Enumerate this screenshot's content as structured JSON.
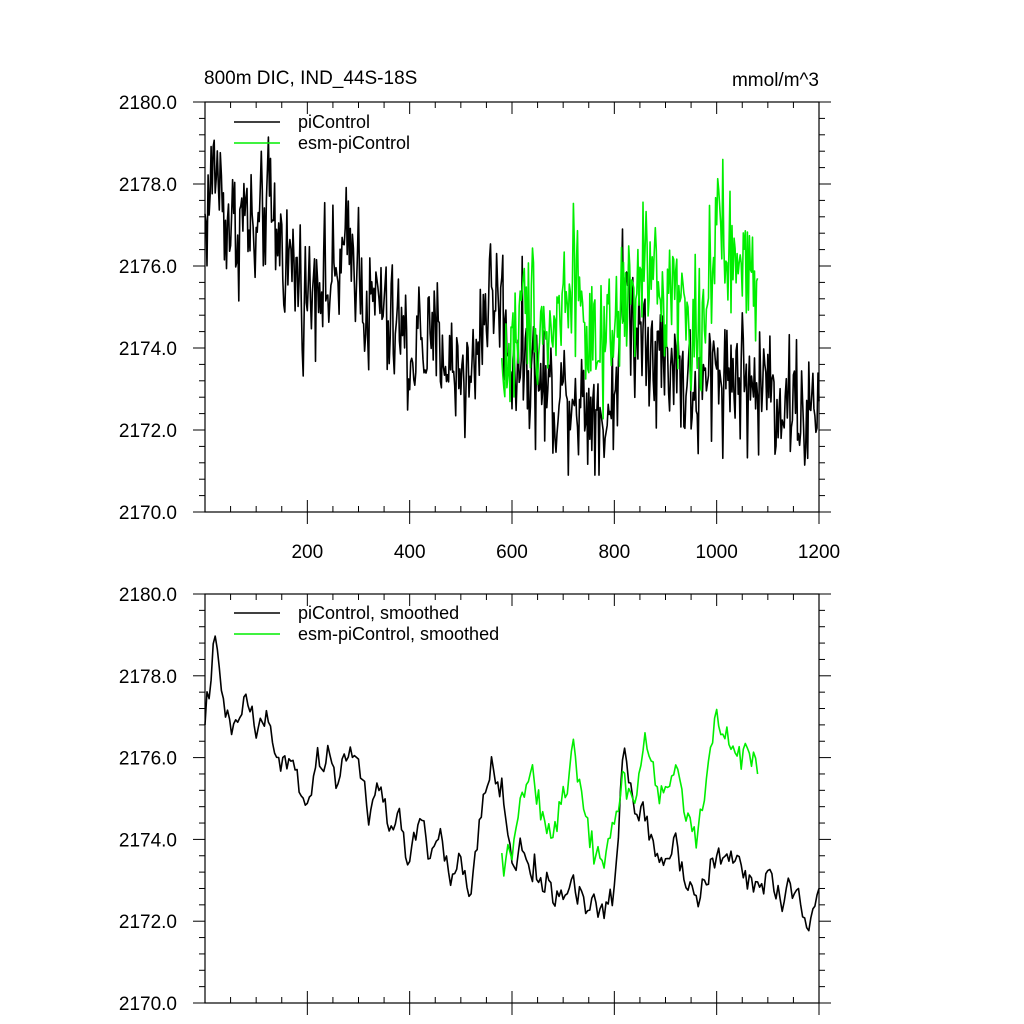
{
  "page": {
    "title": "800m DIC, IND_44S-18S",
    "units": "mmol/m^3"
  },
  "colors": {
    "control": "#000000",
    "esm": "#00ee00"
  },
  "chart_data": [
    {
      "type": "line",
      "title": "800m DIC, IND_44S-18S",
      "ylabel": "mmol/m^3",
      "xlabel": "",
      "xlim": [
        0,
        1200
      ],
      "ylim": [
        2170,
        2180
      ],
      "x_ticks": [
        200,
        400,
        600,
        800,
        1000,
        1200
      ],
      "x_tick_labels": [
        "200",
        "400",
        "600",
        "800",
        "1000",
        "1200"
      ],
      "y_ticks": [
        2170,
        2172,
        2174,
        2176,
        2178,
        2180
      ],
      "y_tick_labels": [
        "2170.0",
        "2172.0",
        "2174.0",
        "2176.0",
        "2178.0",
        "2180.0"
      ],
      "legend": [
        "piControl",
        "esm-piControl"
      ],
      "series": [
        {
          "name": "piControl",
          "color": "#000000",
          "x": [
            0,
            20,
            40,
            60,
            80,
            100,
            120,
            140,
            160,
            180,
            200,
            220,
            240,
            260,
            280,
            300,
            320,
            340,
            360,
            380,
            400,
            420,
            440,
            460,
            480,
            500,
            520,
            540,
            560,
            580,
            600,
            620,
            640,
            660,
            680,
            700,
            720,
            740,
            760,
            780,
            800,
            820,
            840,
            860,
            880,
            900,
            920,
            940,
            960,
            980,
            1000,
            1020,
            1040,
            1060,
            1080,
            1100,
            1120,
            1140,
            1160,
            1180,
            1200
          ],
          "values": [
            2177.0,
            2178.6,
            2177.2,
            2176.9,
            2177.3,
            2176.4,
            2177.6,
            2176.8,
            2176.2,
            2175.8,
            2175.2,
            2176.0,
            2175.4,
            2175.8,
            2176.4,
            2176.2,
            2174.6,
            2175.4,
            2174.3,
            2174.6,
            2173.6,
            2174.4,
            2173.8,
            2174.3,
            2173.4,
            2173.6,
            2173.1,
            2174.7,
            2175.4,
            2175.1,
            2173.6,
            2173.9,
            2173.4,
            2173.1,
            2172.8,
            2172.9,
            2173.0,
            2172.6,
            2172.6,
            2172.1,
            2172.9,
            2175.7,
            2174.4,
            2174.6,
            2173.9,
            2173.6,
            2173.8,
            2173.1,
            2172.7,
            2173.1,
            2173.6,
            2173.3,
            2173.5,
            2173.1,
            2172.9,
            2173.3,
            2172.7,
            2172.8,
            2172.6,
            2172.2,
            2172.7
          ]
        },
        {
          "name": "esm-piControl",
          "color": "#00ee00",
          "x": [
            580,
            600,
            620,
            640,
            660,
            680,
            700,
            720,
            740,
            760,
            780,
            800,
            820,
            840,
            860,
            880,
            900,
            920,
            940,
            960,
            980,
            1000,
            1020,
            1040,
            1060,
            1080
          ],
          "values": [
            2173.4,
            2173.9,
            2174.9,
            2175.1,
            2174.6,
            2174.3,
            2175.2,
            2176.1,
            2174.9,
            2173.8,
            2173.6,
            2174.4,
            2175.3,
            2174.9,
            2176.3,
            2175.5,
            2175.2,
            2175.8,
            2174.6,
            2174.3,
            2175.3,
            2176.9,
            2176.2,
            2176.0,
            2175.9,
            2175.7
          ]
        }
      ]
    },
    {
      "type": "line",
      "title": "",
      "ylabel": "",
      "xlabel": "",
      "xlim": [
        0,
        1200
      ],
      "ylim": [
        2170,
        2180
      ],
      "x_ticks": [
        200,
        400,
        600,
        800,
        1000,
        1200
      ],
      "y_ticks": [
        2170,
        2172,
        2174,
        2176,
        2178,
        2180
      ],
      "y_tick_labels": [
        "2170.0",
        "2172.0",
        "2174.0",
        "2176.0",
        "2178.0",
        "2180.0"
      ],
      "legend": [
        "piControl, smoothed",
        "esm-piControl, smoothed"
      ],
      "series": [
        {
          "name": "piControl, smoothed",
          "color": "#000000",
          "x": [
            0,
            20,
            40,
            60,
            80,
            100,
            120,
            140,
            160,
            180,
            200,
            220,
            240,
            260,
            280,
            300,
            320,
            340,
            360,
            380,
            400,
            420,
            440,
            460,
            480,
            500,
            520,
            540,
            560,
            580,
            600,
            620,
            640,
            660,
            680,
            700,
            720,
            740,
            760,
            780,
            800,
            820,
            840,
            860,
            880,
            900,
            920,
            940,
            960,
            980,
            1000,
            1020,
            1040,
            1060,
            1080,
            1100,
            1120,
            1140,
            1160,
            1180,
            1200
          ],
          "values": [
            2177.0,
            2178.8,
            2177.0,
            2176.6,
            2177.6,
            2176.6,
            2177.0,
            2176.0,
            2175.8,
            2175.6,
            2174.8,
            2175.8,
            2176.0,
            2175.4,
            2176.3,
            2176.0,
            2174.4,
            2175.4,
            2174.2,
            2174.6,
            2173.4,
            2174.6,
            2173.6,
            2174.2,
            2173.0,
            2173.4,
            2172.6,
            2174.6,
            2175.8,
            2175.2,
            2173.4,
            2173.8,
            2173.2,
            2173.0,
            2172.6,
            2172.7,
            2173.0,
            2172.4,
            2172.5,
            2172.1,
            2172.8,
            2176.3,
            2174.6,
            2174.8,
            2173.6,
            2173.6,
            2173.9,
            2173.1,
            2172.6,
            2173.0,
            2173.6,
            2173.4,
            2173.6,
            2173.0,
            2172.8,
            2173.2,
            2172.6,
            2172.7,
            2172.6,
            2172.0,
            2172.8
          ]
        },
        {
          "name": "esm-piControl, smoothed",
          "color": "#00ee00",
          "x": [
            580,
            600,
            620,
            640,
            660,
            680,
            700,
            720,
            740,
            760,
            780,
            800,
            820,
            840,
            860,
            880,
            900,
            920,
            940,
            960,
            980,
            1000,
            1020,
            1040,
            1060,
            1080
          ],
          "values": [
            2173.5,
            2173.8,
            2175.2,
            2175.4,
            2174.6,
            2174.0,
            2175.0,
            2176.2,
            2175.0,
            2173.8,
            2173.4,
            2174.6,
            2175.6,
            2174.8,
            2176.6,
            2175.2,
            2175.3,
            2175.8,
            2174.6,
            2174.0,
            2175.4,
            2177.2,
            2176.4,
            2176.0,
            2176.2,
            2175.6
          ]
        }
      ]
    }
  ]
}
